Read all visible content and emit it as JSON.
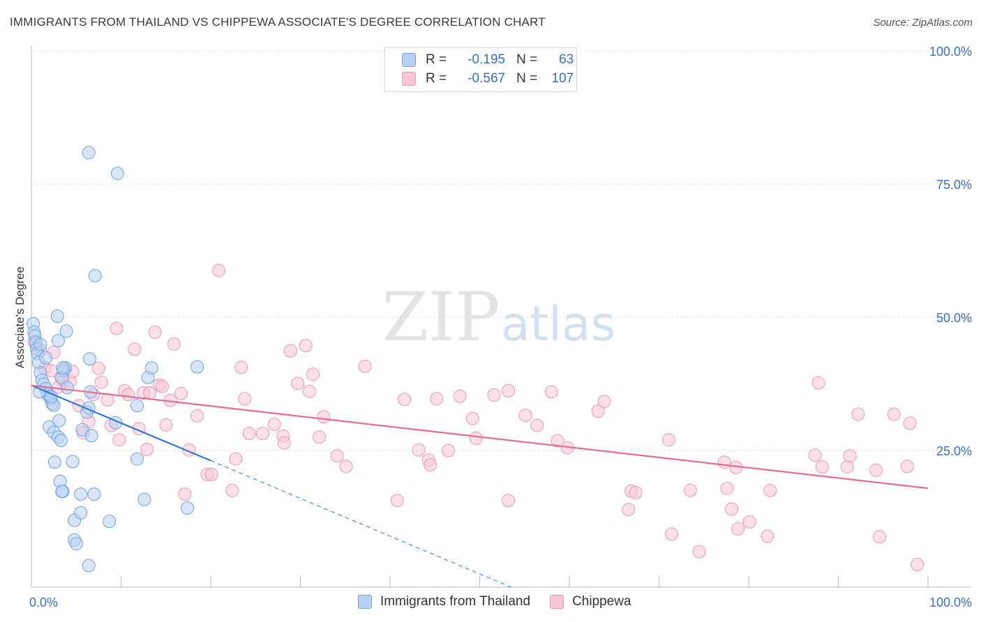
{
  "title": "IMMIGRANTS FROM THAILAND VS CHIPPEWA ASSOCIATE'S DEGREE CORRELATION CHART",
  "source": "Source: ZipAtlas.com",
  "watermark": {
    "zip": "ZIP",
    "atlas": "atlas"
  },
  "legend": {
    "r_label": "R =",
    "n_label": "N =",
    "rows": [
      {
        "r": "-0.195",
        "n": "63",
        "fill": "#b8d1f3",
        "stroke": "#7aa3e0"
      },
      {
        "r": "-0.567",
        "n": "107",
        "fill": "#f9c6d7",
        "stroke": "#ec96b4"
      }
    ]
  },
  "chart_data": {
    "type": "scatter",
    "title": "IMMIGRANTS FROM THAILAND VS CHIPPEWA ASSOCIATE'S DEGREE CORRELATION CHART",
    "xlabel": "",
    "ylabel": "Associate's Degree",
    "xlim": [
      0,
      100
    ],
    "ylim": [
      0,
      100
    ],
    "x_tick_labels": [
      "0.0%",
      "100.0%"
    ],
    "y_ticks": [
      25,
      50,
      75,
      100
    ],
    "y_tick_labels": [
      "25.0%",
      "50.0%",
      "75.0%",
      "100.0%"
    ],
    "grid": true,
    "series": [
      {
        "name": "Immigrants from Thailand",
        "color": "#6fa0e6",
        "fill": "#b8d1f3",
        "trend": {
          "x": [
            0,
            20
          ],
          "y": [
            37.2,
            23.1
          ],
          "extend_to": [
            53.5,
            0
          ]
        },
        "trend_color": "#3474d6",
        "points": [
          [
            0.2,
            48.8
          ],
          [
            0.3,
            47.2
          ],
          [
            0.4,
            46.5
          ],
          [
            0.5,
            45.3
          ],
          [
            0.6,
            44.0
          ],
          [
            0.7,
            43.2
          ],
          [
            0.8,
            41.5
          ],
          [
            1.0,
            39.6
          ],
          [
            1.2,
            38.2
          ],
          [
            1.4,
            37.4
          ],
          [
            1.6,
            36.6
          ],
          [
            1.8,
            35.6
          ],
          [
            2.0,
            35.1
          ],
          [
            2.2,
            34.6
          ],
          [
            2.3,
            33.8
          ],
          [
            2.5,
            33.5
          ],
          [
            2.0,
            29.4
          ],
          [
            2.5,
            28.4
          ],
          [
            3.0,
            27.5
          ],
          [
            2.6,
            22.8
          ],
          [
            3.2,
            19.2
          ],
          [
            3.5,
            17.3
          ],
          [
            2.9,
            50.2
          ],
          [
            3.0,
            45.6
          ],
          [
            3.9,
            47.4
          ],
          [
            3.8,
            40.5
          ],
          [
            3.6,
            40.0
          ],
          [
            3.4,
            38.6
          ],
          [
            4.0,
            36.8
          ],
          [
            3.1,
            30.6
          ],
          [
            3.3,
            26.9
          ],
          [
            4.6,
            22.9
          ],
          [
            3.4,
            17.3
          ],
          [
            4.8,
            11.9
          ],
          [
            4.8,
            8.2
          ],
          [
            5.0,
            7.5
          ],
          [
            5.5,
            16.8
          ],
          [
            5.5,
            13.3
          ],
          [
            5.7,
            28.9
          ],
          [
            6.2,
            32.2
          ],
          [
            6.5,
            42.2
          ],
          [
            6.4,
            33.0
          ],
          [
            6.6,
            36.0
          ],
          [
            6.7,
            27.8
          ],
          [
            7.0,
            16.8
          ],
          [
            6.4,
            3.4
          ],
          [
            7.1,
            57.8
          ],
          [
            6.4,
            80.9
          ],
          [
            9.6,
            77.0
          ],
          [
            8.7,
            11.7
          ],
          [
            9.4,
            30.2
          ],
          [
            11.8,
            33.4
          ],
          [
            11.8,
            23.4
          ],
          [
            12.6,
            15.8
          ],
          [
            13.0,
            38.7
          ],
          [
            13.4,
            40.5
          ],
          [
            17.4,
            14.2
          ],
          [
            18.5,
            40.7
          ],
          [
            1.0,
            44.9
          ],
          [
            1.6,
            42.4
          ],
          [
            2.2,
            35.1
          ],
          [
            0.9,
            36.0
          ],
          [
            3.5,
            40.5
          ]
        ]
      },
      {
        "name": "Chippewa",
        "color": "#ec96b4",
        "fill": "#f9c6d7",
        "trend": {
          "x": [
            0,
            100
          ],
          "y": [
            37.2,
            17.9
          ]
        },
        "trend_color": "#e56b97",
        "points": [
          [
            0.3,
            45.5
          ],
          [
            0.5,
            44.9
          ],
          [
            1.0,
            43.8
          ],
          [
            1.5,
            40.5
          ],
          [
            2.2,
            40.0
          ],
          [
            2.5,
            43.4
          ],
          [
            3.0,
            36.9
          ],
          [
            3.3,
            38.7
          ],
          [
            3.6,
            38.1
          ],
          [
            4.3,
            38.0
          ],
          [
            4.6,
            39.8
          ],
          [
            5.3,
            33.4
          ],
          [
            5.8,
            28.3
          ],
          [
            6.4,
            30.4
          ],
          [
            6.9,
            35.5
          ],
          [
            7.5,
            40.4
          ],
          [
            7.8,
            37.8
          ],
          [
            8.5,
            34.5
          ],
          [
            8.9,
            29.7
          ],
          [
            9.5,
            47.9
          ],
          [
            9.8,
            27.0
          ],
          [
            10.4,
            36.2
          ],
          [
            10.8,
            35.5
          ],
          [
            11.5,
            44.0
          ],
          [
            12.0,
            29.1
          ],
          [
            12.5,
            35.8
          ],
          [
            12.9,
            25.2
          ],
          [
            13.2,
            35.8
          ],
          [
            13.8,
            47.2
          ],
          [
            14.3,
            37.3
          ],
          [
            14.6,
            37.0
          ],
          [
            15.0,
            29.8
          ],
          [
            15.5,
            34.4
          ],
          [
            15.9,
            45.0
          ],
          [
            16.7,
            35.7
          ],
          [
            17.1,
            16.8
          ],
          [
            17.6,
            25.1
          ],
          [
            18.5,
            31.5
          ],
          [
            19.6,
            20.5
          ],
          [
            20.1,
            20.5
          ],
          [
            20.9,
            58.8
          ],
          [
            22.4,
            17.5
          ],
          [
            22.8,
            23.4
          ],
          [
            23.4,
            40.6
          ],
          [
            23.8,
            34.7
          ],
          [
            24.3,
            28.2
          ],
          [
            25.8,
            28.2
          ],
          [
            27.1,
            29.9
          ],
          [
            28.1,
            27.7
          ],
          [
            28.2,
            26.4
          ],
          [
            28.9,
            43.7
          ],
          [
            29.7,
            37.6
          ],
          [
            30.6,
            44.7
          ],
          [
            31.0,
            36.1
          ],
          [
            31.4,
            39.3
          ],
          [
            32.1,
            27.5
          ],
          [
            32.6,
            31.3
          ],
          [
            34.1,
            24.0
          ],
          [
            35.1,
            22.0
          ],
          [
            37.2,
            40.8
          ],
          [
            40.8,
            15.6
          ],
          [
            41.6,
            34.6
          ],
          [
            43.2,
            25.1
          ],
          [
            44.3,
            23.2
          ],
          [
            44.5,
            22.3
          ],
          [
            45.2,
            34.7
          ],
          [
            46.5,
            25.0
          ],
          [
            47.8,
            35.2
          ],
          [
            49.2,
            31.0
          ],
          [
            49.6,
            27.3
          ],
          [
            51.6,
            35.4
          ],
          [
            53.2,
            36.2
          ],
          [
            53.2,
            15.6
          ],
          [
            55.1,
            31.6
          ],
          [
            56.4,
            29.7
          ],
          [
            58.0,
            36.0
          ],
          [
            58.7,
            26.8
          ],
          [
            59.8,
            25.5
          ],
          [
            63.2,
            32.4
          ],
          [
            63.9,
            34.2
          ],
          [
            66.6,
            13.9
          ],
          [
            66.9,
            17.4
          ],
          [
            67.4,
            17.1
          ],
          [
            71.1,
            27.0
          ],
          [
            71.4,
            9.3
          ],
          [
            73.5,
            17.5
          ],
          [
            74.5,
            6.0
          ],
          [
            77.3,
            22.8
          ],
          [
            77.6,
            17.9
          ],
          [
            78.1,
            14.0
          ],
          [
            78.6,
            21.8
          ],
          [
            78.8,
            10.3
          ],
          [
            80.1,
            11.6
          ],
          [
            82.1,
            8.9
          ],
          [
            82.4,
            17.5
          ],
          [
            87.4,
            24.1
          ],
          [
            87.8,
            37.7
          ],
          [
            88.2,
            21.9
          ],
          [
            91.0,
            21.9
          ],
          [
            91.3,
            24.0
          ],
          [
            92.2,
            31.8
          ],
          [
            94.2,
            21.3
          ],
          [
            94.6,
            8.8
          ],
          [
            96.2,
            31.8
          ],
          [
            97.7,
            22.0
          ],
          [
            98.0,
            30.1
          ],
          [
            98.8,
            3.6
          ]
        ]
      }
    ]
  }
}
